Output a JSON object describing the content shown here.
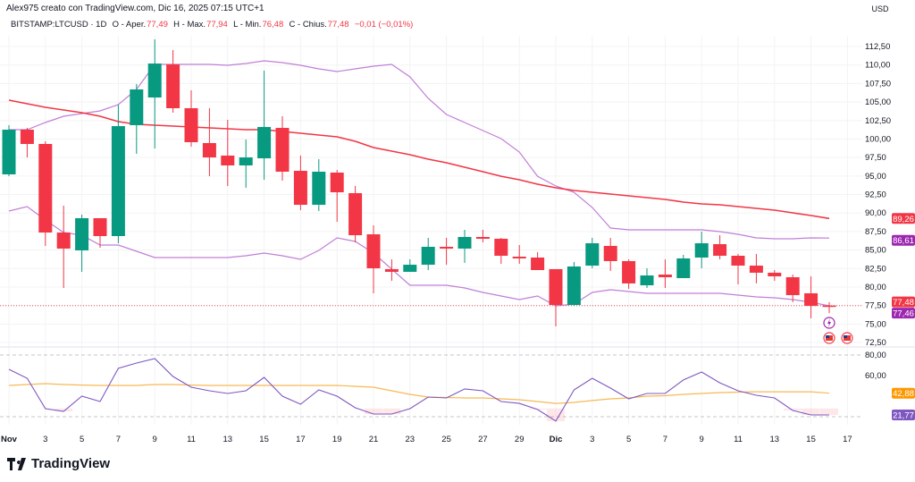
{
  "header": {
    "credit": "Alex975 creato con TradingView.com, Dic 16, 2025 07:15 UTC+1",
    "symbol": "BITSTAMP:LTCUSD · 1D",
    "open_label": "O - Aper.",
    "open": "77,49",
    "high_label": "H - Max.",
    "high": "77,94",
    "low_label": "L - Min.",
    "low": "76,48",
    "close_label": "C - Chius.",
    "close": "77,48",
    "change": "−0,01 (−0,01%)"
  },
  "axis": {
    "currency": "USD",
    "price_ticks": [
      "112,50",
      "110,00",
      "107,50",
      "105,00",
      "102,50",
      "100,00",
      "97,50",
      "95,00",
      "92,50",
      "90,00",
      "87,50",
      "85,00",
      "82,50",
      "80,00",
      "77,50",
      "75,00",
      "72,50"
    ],
    "rsi_ticks": [
      "80,00",
      "60,00"
    ],
    "date_ticks": [
      "Nov",
      "3",
      "5",
      "7",
      "9",
      "11",
      "13",
      "15",
      "17",
      "19",
      "21",
      "23",
      "25",
      "27",
      "29",
      "Dic",
      "3",
      "5",
      "7",
      "9",
      "11",
      "13",
      "15",
      "17"
    ]
  },
  "badges": {
    "ma": "89,26",
    "bb_upper": "86,61",
    "last": "77,48",
    "bb_lower": "77,46",
    "rsi_ma": "42,88",
    "rsi": "21,77"
  },
  "colors": {
    "up": "#089981",
    "down": "#f23645",
    "ma": "#f23645",
    "bb": "#c07fd6",
    "rsi": "#7e57c2",
    "rsi_ma": "#f7b955",
    "badge_purple": "#9c27b0",
    "badge_rsi": "#7e57c2",
    "badge_orange": "#ff9800"
  },
  "icons": [
    "lightning-icon",
    "us-flag-icon",
    "us-flag-icon"
  ],
  "brand": "TradingView",
  "chart_data": {
    "type": "candlestick",
    "title": "BITSTAMP:LTCUSD · 1D",
    "x_start": "2025-11-01",
    "ylim": [
      72.5,
      113.5
    ],
    "candles": [
      [
        95.22,
        101.87,
        94.97,
        101.26
      ],
      [
        101.26,
        101.5,
        97.51,
        99.33
      ],
      [
        99.33,
        99.69,
        85.55,
        87.36
      ],
      [
        87.36,
        90.99,
        79.87,
        85.19
      ],
      [
        84.95,
        89.78,
        82.05,
        89.3
      ],
      [
        89.3,
        89.3,
        85.31,
        86.88
      ],
      [
        86.88,
        104.64,
        85.91,
        101.74
      ],
      [
        101.87,
        107.42,
        98.0,
        106.7
      ],
      [
        105.61,
        113.47,
        98.72,
        110.2
      ],
      [
        110.08,
        112.02,
        103.56,
        104.16
      ],
      [
        104.16,
        106.58,
        98.96,
        99.57
      ],
      [
        99.45,
        104.16,
        94.97,
        97.51
      ],
      [
        97.76,
        102.59,
        93.65,
        96.43
      ],
      [
        96.43,
        99.93,
        93.41,
        97.51
      ],
      [
        97.39,
        109.24,
        94.49,
        101.62
      ],
      [
        101.5,
        103.07,
        94.37,
        95.58
      ],
      [
        95.7,
        97.76,
        90.38,
        91.11
      ],
      [
        91.11,
        97.27,
        90.26,
        95.58
      ],
      [
        95.46,
        95.82,
        88.81,
        92.8
      ],
      [
        92.68,
        93.65,
        86.03,
        87.0
      ],
      [
        87.12,
        88.33,
        79.15,
        82.53
      ],
      [
        82.41,
        83.74,
        80.84,
        82.05
      ],
      [
        82.05,
        83.74,
        82.05,
        83.01
      ],
      [
        83.01,
        86.64,
        82.29,
        85.43
      ],
      [
        85.43,
        86.64,
        83.01,
        85.19
      ],
      [
        85.19,
        87.73,
        83.26,
        86.76
      ],
      [
        86.76,
        87.73,
        86.03,
        86.52
      ],
      [
        86.52,
        86.64,
        83.13,
        84.22
      ],
      [
        84.1,
        85.67,
        83.13,
        83.86
      ],
      [
        83.98,
        84.7,
        82.29,
        82.29
      ],
      [
        82.41,
        82.41,
        74.67,
        77.57
      ],
      [
        77.57,
        83.38,
        77.45,
        82.77
      ],
      [
        82.89,
        86.64,
        82.53,
        85.91
      ],
      [
        85.55,
        86.64,
        82.17,
        83.5
      ],
      [
        83.5,
        83.74,
        79.75,
        80.48
      ],
      [
        80.23,
        82.53,
        79.87,
        81.56
      ],
      [
        81.68,
        83.74,
        79.87,
        81.32
      ],
      [
        81.2,
        84.34,
        81.2,
        83.86
      ],
      [
        83.98,
        87.48,
        82.53,
        85.91
      ],
      [
        85.79,
        87.0,
        83.74,
        84.22
      ],
      [
        84.22,
        84.46,
        80.35,
        82.89
      ],
      [
        82.89,
        84.46,
        80.48,
        81.93
      ],
      [
        81.93,
        82.29,
        80.84,
        81.44
      ],
      [
        81.32,
        81.68,
        77.94,
        78.9
      ],
      [
        79.15,
        81.44,
        75.76,
        77.45
      ],
      [
        77.49,
        77.94,
        76.48,
        77.48
      ]
    ],
    "ma": [
      105.25,
      104.77,
      104.28,
      103.92,
      103.56,
      103.07,
      102.35,
      101.99,
      101.87,
      101.74,
      101.62,
      101.5,
      101.38,
      101.26,
      101.26,
      101.02,
      100.78,
      100.54,
      100.3,
      99.69,
      98.84,
      98.36,
      97.88,
      97.27,
      96.79,
      96.19,
      95.58,
      94.97,
      94.49,
      93.89,
      93.41,
      93.04,
      92.8,
      92.56,
      92.32,
      92.08,
      91.83,
      91.47,
      91.23,
      91.11,
      90.87,
      90.63,
      90.38,
      90.02,
      89.66,
      89.26
    ],
    "bb_upper": [
      101.26,
      101.26,
      102.23,
      103.07,
      103.44,
      103.8,
      104.64,
      106.7,
      110.08,
      110.08,
      110.08,
      110.08,
      109.96,
      110.2,
      110.57,
      110.32,
      109.96,
      109.48,
      109.12,
      109.48,
      109.84,
      110.08,
      108.39,
      105.49,
      103.32,
      102.23,
      101.14,
      100.05,
      98.24,
      94.97,
      93.65,
      92.8,
      90.75,
      87.97,
      87.73,
      87.73,
      87.73,
      87.73,
      87.73,
      87.48,
      87.12,
      86.64,
      86.52,
      86.52,
      86.64,
      86.61
    ],
    "bb_lower": [
      90.26,
      90.87,
      89.05,
      87.36,
      87.0,
      85.67,
      85.67,
      84.83,
      83.98,
      83.98,
      83.98,
      83.98,
      83.98,
      84.22,
      84.58,
      84.22,
      83.74,
      84.95,
      86.64,
      86.15,
      84.58,
      82.41,
      80.23,
      80.23,
      80.23,
      79.87,
      79.27,
      78.78,
      78.3,
      78.78,
      77.45,
      77.69,
      79.27,
      79.63,
      79.39,
      79.15,
      79.15,
      79.15,
      79.15,
      79.15,
      78.9,
      78.66,
      78.54,
      78.3,
      77.94,
      77.46
    ],
    "rsi_ylim": [
      14,
      90
    ],
    "rsi_bands": [
      80,
      20
    ],
    "rsi": [
      66.1,
      57.4,
      27.8,
      25.2,
      40.0,
      34.8,
      67.0,
      72.2,
      76.5,
      59.1,
      48.7,
      45.2,
      42.6,
      45.2,
      58.3,
      40.0,
      32.2,
      46.1,
      40.0,
      28.7,
      22.6,
      22.6,
      27.8,
      39.1,
      38.3,
      47.0,
      45.2,
      34.8,
      33.0,
      27.0,
      15.7,
      46.1,
      57.4,
      47.8,
      37.4,
      42.6,
      42.6,
      55.7,
      63.5,
      53.0,
      45.2,
      40.9,
      38.3,
      26.1,
      21.77,
      21.77
    ],
    "rsi_ma": [
      50.4,
      51.3,
      52.2,
      51.3,
      50.8,
      50.4,
      50.4,
      50.4,
      51.3,
      51.3,
      50.8,
      50.4,
      50.4,
      50.4,
      50.4,
      50.4,
      50.4,
      50.4,
      50.4,
      49.6,
      48.7,
      45.2,
      41.7,
      39.1,
      38.7,
      38.3,
      38.3,
      37.4,
      36.5,
      34.8,
      33.0,
      33.9,
      35.7,
      37.4,
      38.3,
      40.0,
      40.4,
      41.7,
      42.6,
      43.5,
      43.9,
      44.3,
      44.3,
      44.3,
      44.3,
      42.88
    ],
    "grid": true
  }
}
